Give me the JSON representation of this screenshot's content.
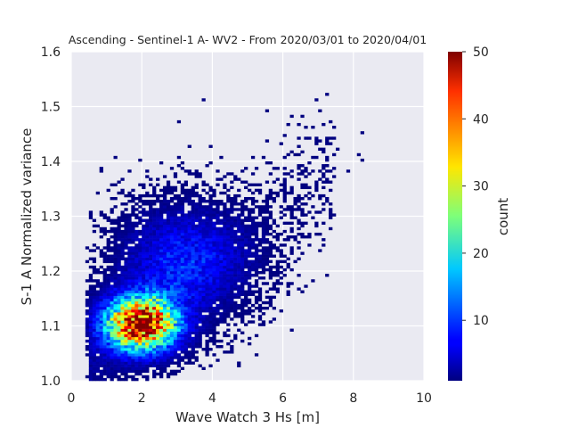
{
  "chart_data": {
    "type": "heatmap",
    "title": "Ascending - Sentinel-1 A- WV2 - From 2020/03/01 to 2020/04/01",
    "xlabel": "Wave Watch 3 Hs [m]",
    "ylabel": "S-1 A Normalized variance",
    "xlim": [
      0,
      10
    ],
    "ylim": [
      1.0,
      1.6
    ],
    "x_ticks": [
      "0",
      "2",
      "4",
      "6",
      "8",
      "10"
    ],
    "y_ticks": [
      "1.0",
      "1.1",
      "1.2",
      "1.3",
      "1.4",
      "1.5",
      "1.6"
    ],
    "grid": true,
    "background": "#eaeaf2",
    "colorbar": {
      "label": "count",
      "range": [
        1,
        50
      ],
      "ticks": [
        "10",
        "20",
        "30",
        "40",
        "50"
      ],
      "colormap": "jet"
    },
    "density_model": {
      "description": "2D histogram of counts; dense ridge from low Hs/low variance toward high Hs/high variance",
      "clusters": [
        {
          "hs": 2.0,
          "nv": 1.105,
          "peak_count": 50
        },
        {
          "hs": 3.2,
          "nv": 1.22,
          "peak_count": 8
        }
      ],
      "trend": {
        "hs": [
          0.5,
          8.5
        ],
        "nv": [
          1.04,
          1.42
        ]
      },
      "outliers": [
        {
          "hs": 7.2,
          "nv": 1.52
        },
        {
          "hs": 6.9,
          "nv": 1.51
        },
        {
          "hs": 5.5,
          "nv": 1.49
        },
        {
          "hs": 3.7,
          "nv": 1.51
        },
        {
          "hs": 8.2,
          "nv": 1.45
        },
        {
          "hs": 8.1,
          "nv": 1.41
        },
        {
          "hs": 8.2,
          "nv": 1.4
        },
        {
          "hs": 7.8,
          "nv": 1.38
        },
        {
          "hs": 7.5,
          "nv": 1.42
        },
        {
          "hs": 7.2,
          "nv": 1.39
        },
        {
          "hs": 6.6,
          "nv": 1.46
        },
        {
          "hs": 7.0,
          "nv": 1.49
        },
        {
          "hs": 7.4,
          "nv": 1.46
        },
        {
          "hs": 6.2,
          "nv": 1.48
        },
        {
          "hs": 6.4,
          "nv": 1.44
        },
        {
          "hs": 5.9,
          "nv": 1.43
        },
        {
          "hs": 7.2,
          "nv": 1.19
        },
        {
          "hs": 6.8,
          "nv": 1.18
        },
        {
          "hs": 6.4,
          "nv": 1.22
        },
        {
          "hs": 6.7,
          "nv": 1.26
        },
        {
          "hs": 6.5,
          "nv": 1.3
        },
        {
          "hs": 3.0,
          "nv": 1.47
        },
        {
          "hs": 3.5,
          "nv": 1.38
        }
      ]
    }
  }
}
